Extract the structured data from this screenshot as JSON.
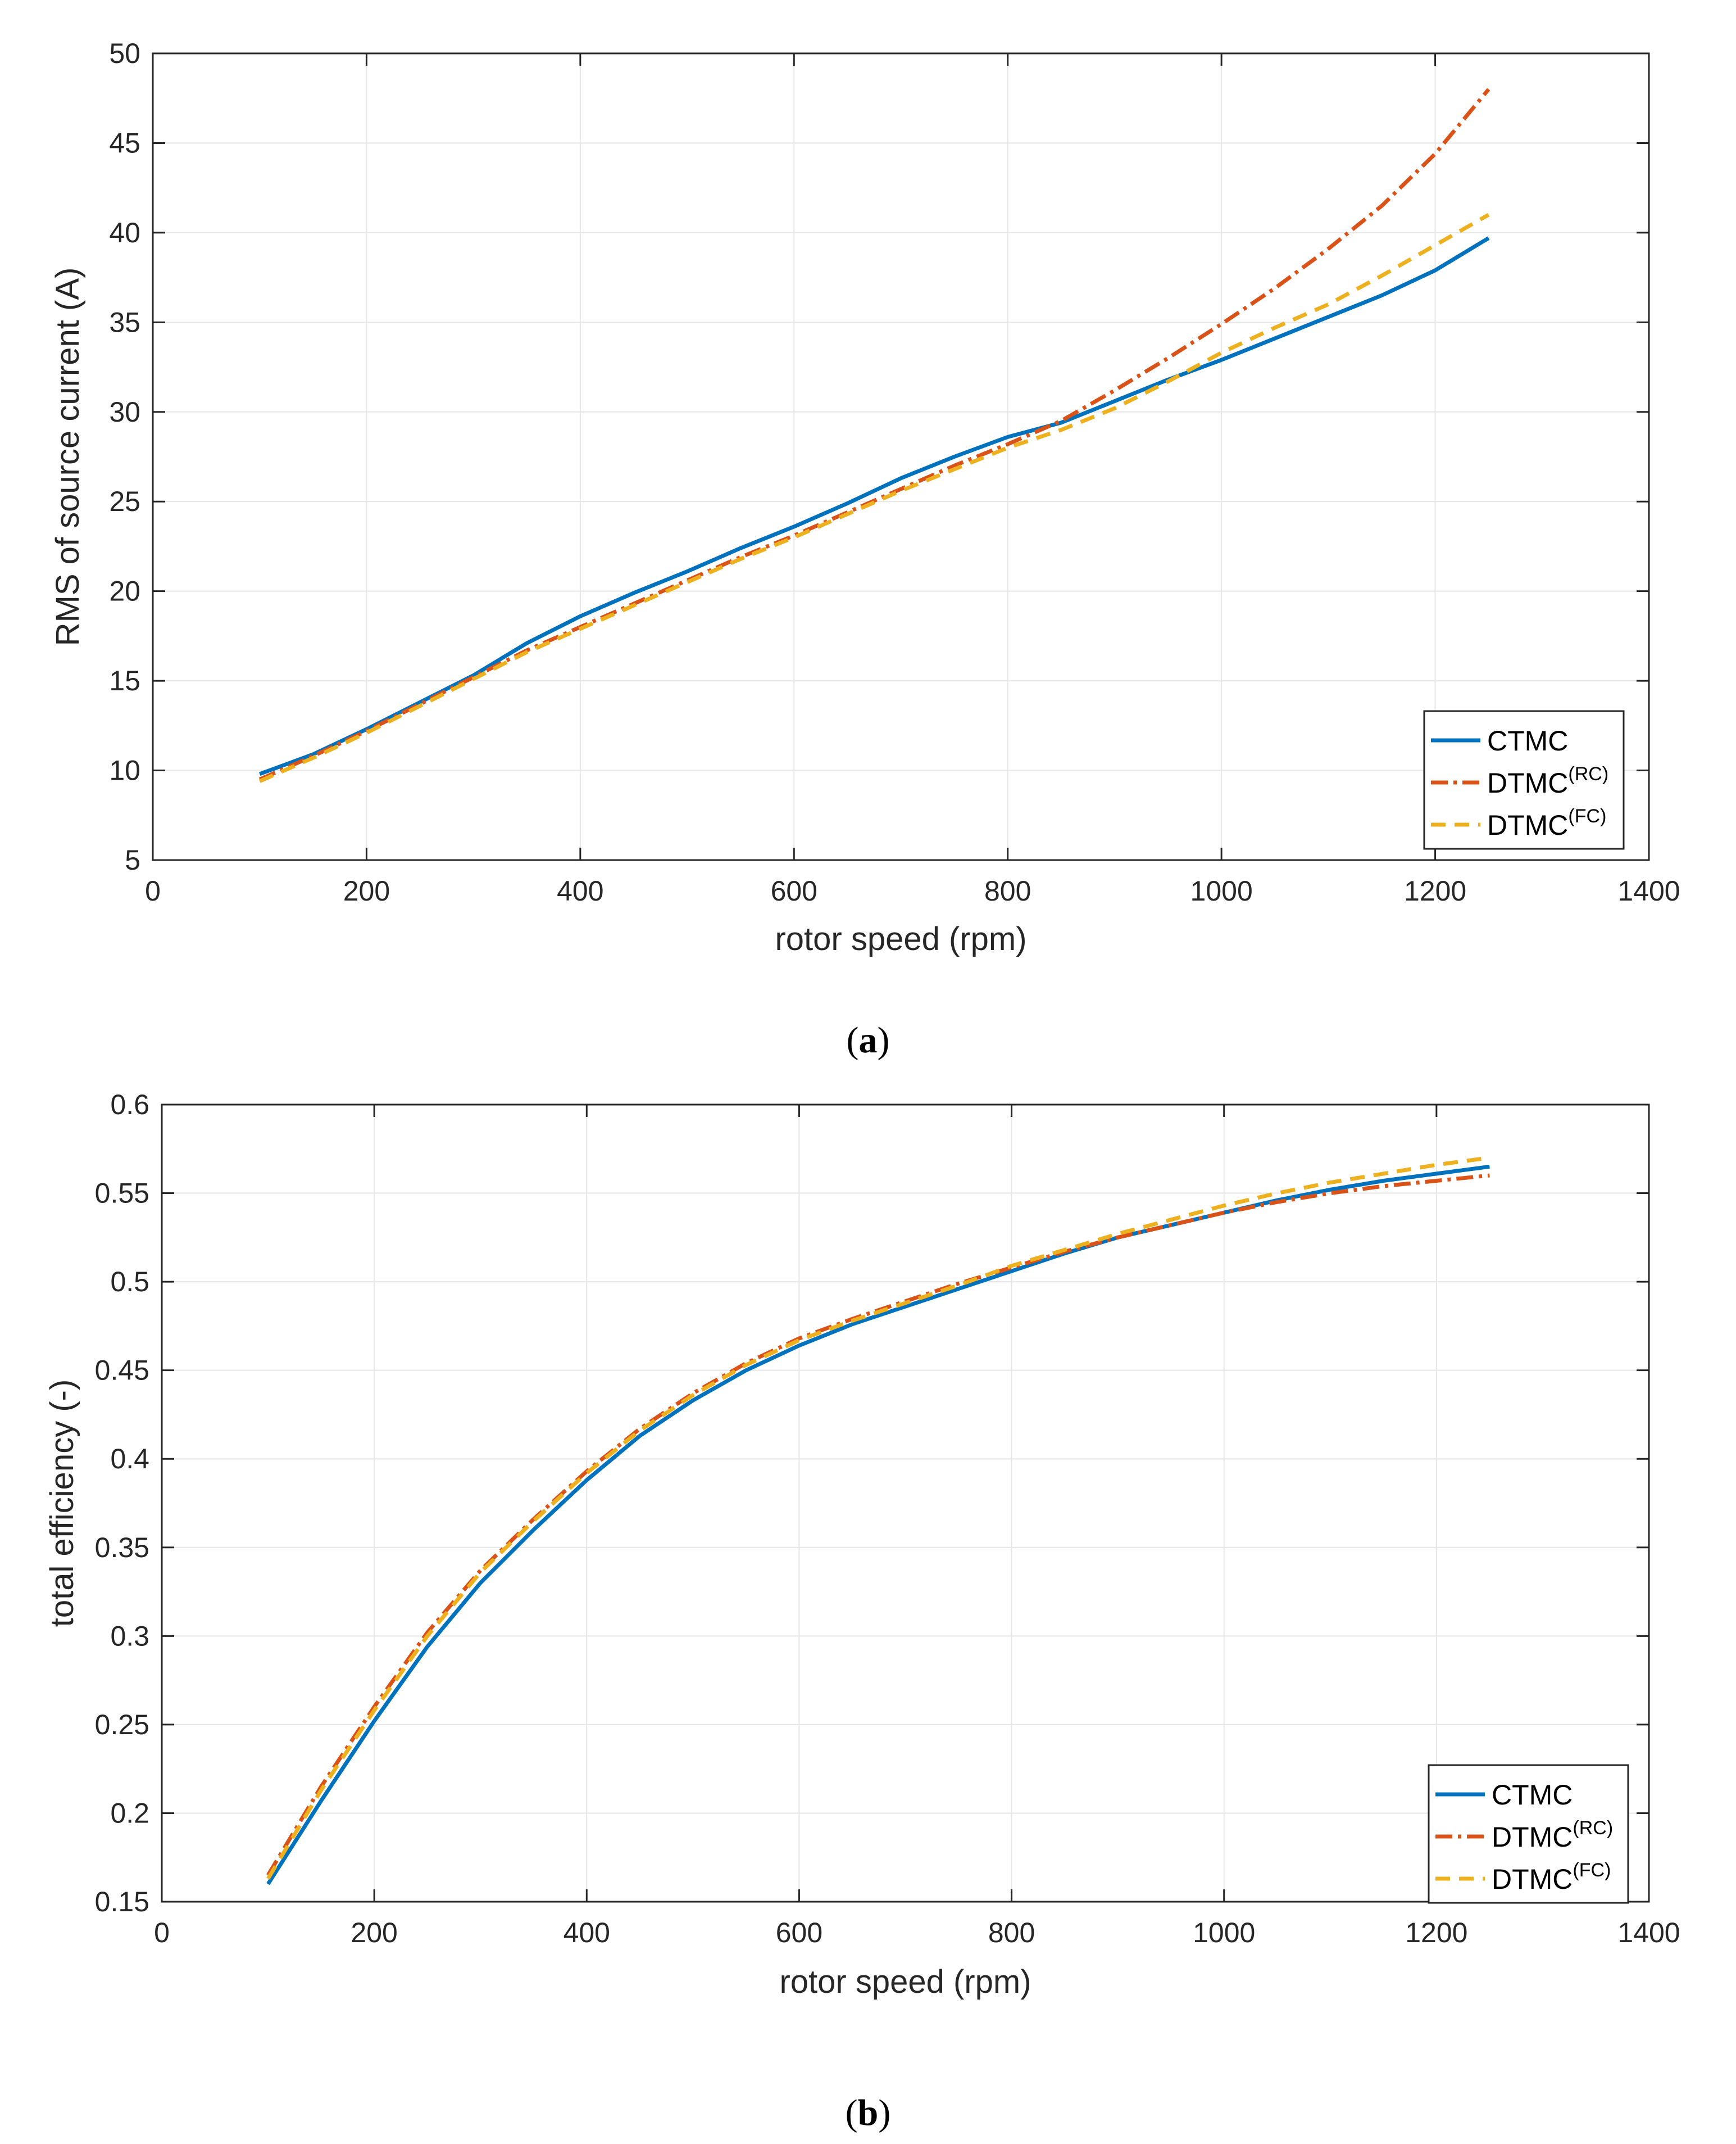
{
  "colors": {
    "CTMC": "#0072BD",
    "DTMC_RC": "#D95319",
    "DTMC_FC": "#EDB120",
    "grid": "#e6e6e6",
    "axis": "#262626"
  },
  "chart_data": [
    {
      "panel": "a",
      "caption": {
        "open": "(",
        "letter": "a",
        "close": ")"
      },
      "type": "line",
      "xlabel": "rotor speed (rpm)",
      "ylabel": "RMS of source current (A)",
      "xlim": [
        0,
        1400
      ],
      "ylim": [
        5,
        50
      ],
      "xticks": [
        0,
        200,
        400,
        600,
        800,
        1000,
        1200,
        1400
      ],
      "yticks": [
        5,
        10,
        15,
        20,
        25,
        30,
        35,
        40,
        45,
        50
      ],
      "grid": true,
      "legend_position": "bottom-right",
      "series": [
        {
          "key": "CTMC",
          "name": "CTMC",
          "sup": "",
          "style": "solid",
          "x": [
            100,
            150,
            200,
            250,
            300,
            350,
            400,
            450,
            500,
            550,
            600,
            650,
            700,
            750,
            800,
            850,
            900,
            950,
            1000,
            1050,
            1100,
            1150,
            1200,
            1250
          ],
          "y": [
            9.8,
            10.9,
            12.3,
            13.8,
            15.3,
            17.1,
            18.6,
            19.9,
            21.1,
            22.4,
            23.6,
            24.9,
            26.3,
            27.5,
            28.6,
            29.4,
            30.6,
            31.8,
            32.9,
            34.1,
            35.3,
            36.5,
            37.9,
            39.7
          ]
        },
        {
          "key": "DTMC_RC",
          "name": "DTMC",
          "sup": "(RC)",
          "style": "dashdot",
          "x": [
            100,
            150,
            200,
            250,
            300,
            350,
            400,
            450,
            500,
            550,
            600,
            650,
            700,
            750,
            800,
            850,
            900,
            950,
            1000,
            1050,
            1100,
            1150,
            1200,
            1250
          ],
          "y": [
            9.5,
            10.8,
            12.2,
            13.7,
            15.2,
            16.7,
            18.0,
            19.3,
            20.6,
            21.9,
            23.1,
            24.4,
            25.7,
            27.0,
            28.2,
            29.5,
            31.2,
            33.0,
            34.9,
            36.9,
            39.1,
            41.5,
            44.4,
            48.0
          ]
        },
        {
          "key": "DTMC_FC",
          "name": "DTMC",
          "sup": "(FC)",
          "style": "dashed",
          "x": [
            100,
            150,
            200,
            250,
            300,
            350,
            400,
            450,
            500,
            550,
            600,
            650,
            700,
            750,
            800,
            850,
            900,
            950,
            1000,
            1050,
            1100,
            1150,
            1200,
            1250
          ],
          "y": [
            9.4,
            10.7,
            12.1,
            13.6,
            15.1,
            16.6,
            17.9,
            19.2,
            20.5,
            21.8,
            23.0,
            24.3,
            25.6,
            26.8,
            28.0,
            29.0,
            30.2,
            31.7,
            33.3,
            34.7,
            36.0,
            37.6,
            39.3,
            41.0
          ]
        }
      ]
    },
    {
      "panel": "b",
      "caption": {
        "open": "(",
        "letter": "b",
        "close": ")"
      },
      "type": "line",
      "xlabel": "rotor speed (rpm)",
      "ylabel": "total efficiency (-)",
      "xlim": [
        0,
        1400
      ],
      "ylim": [
        0.15,
        0.6
      ],
      "xticks": [
        0,
        200,
        400,
        600,
        800,
        1000,
        1200,
        1400
      ],
      "yticks": [
        0.15,
        0.2,
        0.25,
        0.3,
        0.35,
        0.4,
        0.45,
        0.5,
        0.55,
        0.6
      ],
      "grid": true,
      "legend_position": "bottom-right",
      "series": [
        {
          "key": "CTMC",
          "name": "CTMC",
          "sup": "",
          "style": "solid",
          "x": [
            100,
            150,
            200,
            250,
            300,
            350,
            400,
            450,
            500,
            550,
            600,
            650,
            700,
            750,
            800,
            850,
            900,
            950,
            1000,
            1050,
            1100,
            1150,
            1200,
            1250
          ],
          "y": [
            0.16,
            0.207,
            0.252,
            0.294,
            0.33,
            0.36,
            0.388,
            0.413,
            0.433,
            0.45,
            0.464,
            0.476,
            0.486,
            0.496,
            0.506,
            0.516,
            0.525,
            0.532,
            0.539,
            0.546,
            0.552,
            0.557,
            0.561,
            0.565
          ]
        },
        {
          "key": "DTMC_RC",
          "name": "DTMC",
          "sup": "(RC)",
          "style": "dashdot",
          "x": [
            100,
            150,
            200,
            250,
            300,
            350,
            400,
            450,
            500,
            550,
            600,
            650,
            700,
            750,
            800,
            850,
            900,
            950,
            1000,
            1050,
            1100,
            1150,
            1200,
            1250
          ],
          "y": [
            0.165,
            0.215,
            0.26,
            0.302,
            0.337,
            0.366,
            0.393,
            0.417,
            0.437,
            0.454,
            0.468,
            0.479,
            0.489,
            0.499,
            0.508,
            0.517,
            0.525,
            0.532,
            0.539,
            0.545,
            0.55,
            0.554,
            0.557,
            0.56
          ]
        },
        {
          "key": "DTMC_FC",
          "name": "DTMC",
          "sup": "(FC)",
          "style": "dashed",
          "x": [
            100,
            150,
            200,
            250,
            300,
            350,
            400,
            450,
            500,
            550,
            600,
            650,
            700,
            750,
            800,
            850,
            900,
            950,
            1000,
            1050,
            1100,
            1150,
            1200,
            1250
          ],
          "y": [
            0.163,
            0.213,
            0.258,
            0.3,
            0.336,
            0.365,
            0.392,
            0.416,
            0.436,
            0.453,
            0.467,
            0.478,
            0.488,
            0.498,
            0.509,
            0.518,
            0.527,
            0.535,
            0.543,
            0.55,
            0.556,
            0.561,
            0.566,
            0.57
          ]
        }
      ]
    }
  ]
}
